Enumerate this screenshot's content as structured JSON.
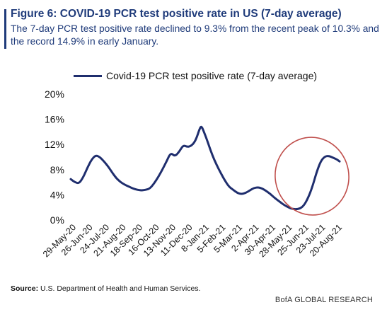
{
  "header": {
    "title": "Figure 6: COVID-19 PCR test positive rate in US (7-day average)",
    "subtitle": "The 7-day PCR test positive rate declined to 9.3% from the recent peak of 10.3% and the record 14.9% in early January."
  },
  "footer": {
    "source_label": "Source:",
    "source_text": "U.S. Department of Health and Human Services.",
    "brand": "BofA GLOBAL RESEARCH"
  },
  "colors": {
    "line": "#1f2e6e",
    "highlight_circle": "#c0504d",
    "title": "#1f3b7a"
  },
  "chart_data": {
    "type": "line",
    "legend": "top-center",
    "grid": false,
    "ylim": [
      0,
      20
    ],
    "yticks": [
      "0%",
      "4%",
      "8%",
      "12%",
      "16%",
      "20%"
    ],
    "ytick_values": [
      0,
      4,
      8,
      12,
      16,
      20
    ],
    "xticks": [
      "29-May-20",
      "26-Jun-20",
      "24-Jul-20",
      "21-Aug-20",
      "18-Sep-20",
      "16-Oct-20",
      "13-Nov-20",
      "11-Dec-20",
      "8-Jan-21",
      "5-Feb-21",
      "5-Mar-21",
      "2-Apr-21",
      "30-Apr-21",
      "28-May-21",
      "25-Jun-21",
      "23-Jul-21",
      "20-Aug-21"
    ],
    "series": [
      {
        "name": "Covid-19 PCR test positive rate (7-day average)",
        "x": [
          "2020-05-29",
          "2020-06-05",
          "2020-06-12",
          "2020-06-19",
          "2020-06-26",
          "2020-07-03",
          "2020-07-10",
          "2020-07-17",
          "2020-07-24",
          "2020-07-31",
          "2020-08-07",
          "2020-08-14",
          "2020-08-21",
          "2020-08-28",
          "2020-09-04",
          "2020-09-11",
          "2020-09-18",
          "2020-09-25",
          "2020-10-02",
          "2020-10-09",
          "2020-10-16",
          "2020-10-23",
          "2020-10-30",
          "2020-11-06",
          "2020-11-13",
          "2020-11-20",
          "2020-11-27",
          "2020-12-04",
          "2020-12-11",
          "2020-12-18",
          "2020-12-25",
          "2021-01-01",
          "2021-01-04",
          "2021-01-08",
          "2021-01-15",
          "2021-01-22",
          "2021-01-29",
          "2021-02-05",
          "2021-02-12",
          "2021-02-19",
          "2021-02-26",
          "2021-03-05",
          "2021-03-12",
          "2021-03-19",
          "2021-03-26",
          "2021-04-02",
          "2021-04-09",
          "2021-04-16",
          "2021-04-23",
          "2021-04-30",
          "2021-05-07",
          "2021-05-14",
          "2021-05-21",
          "2021-05-28",
          "2021-06-04",
          "2021-06-11",
          "2021-06-18",
          "2021-06-25",
          "2021-07-02",
          "2021-07-09",
          "2021-07-16",
          "2021-07-23",
          "2021-07-30",
          "2021-08-06",
          "2021-08-13",
          "2021-08-20",
          "2021-08-24"
        ],
        "values": [
          6.5,
          6.0,
          5.8,
          6.8,
          8.3,
          9.6,
          10.3,
          10.0,
          9.3,
          8.5,
          7.5,
          6.6,
          6.0,
          5.6,
          5.3,
          5.0,
          4.8,
          4.7,
          4.8,
          5.0,
          5.8,
          6.8,
          8.0,
          9.3,
          10.7,
          10.1,
          10.8,
          11.9,
          11.6,
          11.8,
          12.6,
          14.6,
          14.9,
          14.0,
          12.2,
          10.3,
          8.8,
          7.5,
          6.3,
          5.3,
          4.8,
          4.3,
          4.1,
          4.3,
          4.7,
          5.1,
          5.2,
          5.0,
          4.6,
          4.1,
          3.5,
          3.0,
          2.5,
          2.1,
          1.8,
          1.7,
          1.8,
          2.3,
          3.5,
          5.2,
          7.5,
          9.3,
          10.1,
          10.2,
          9.9,
          9.6,
          9.3
        ]
      }
    ],
    "annotations": [
      {
        "type": "ellipse",
        "target": "recent rise from late May 2021 to late Aug 2021"
      }
    ]
  }
}
